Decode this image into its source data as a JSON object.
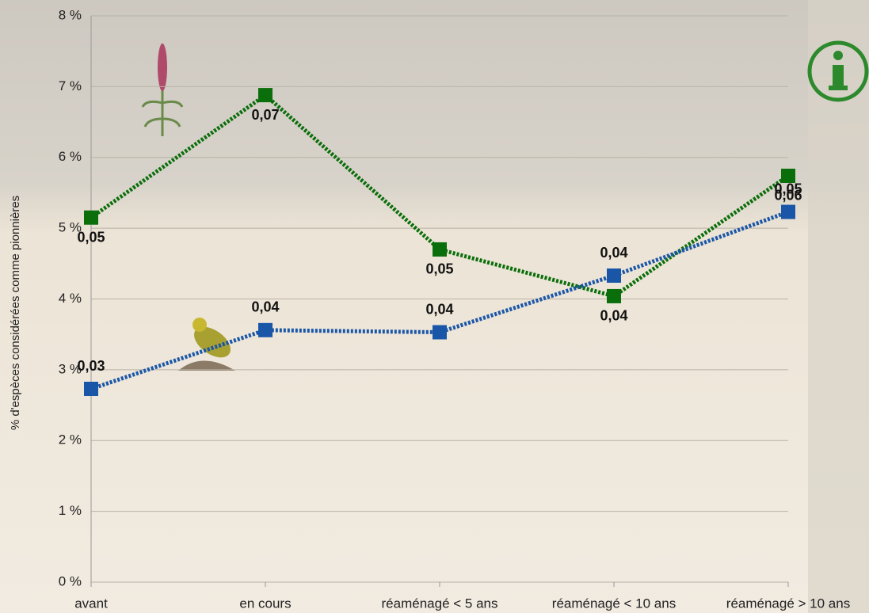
{
  "chart_data": {
    "type": "line",
    "y_label": "% d'espèces considérées comme pionnières",
    "categories": [
      "avant",
      "en cours",
      "réaménagé < 5 ans",
      "réaménagé < 10 ans",
      "réaménagé > 10 ans"
    ],
    "series": [
      {
        "color": "#0a6e0a",
        "values": [
          5.15,
          6.88,
          4.7,
          4.04,
          5.74
        ],
        "value_labels": [
          "0,05",
          "0,07",
          "0,05",
          "0,04",
          "0,06"
        ]
      },
      {
        "color": "#1a56a8",
        "values": [
          2.73,
          3.56,
          3.53,
          4.33,
          5.23
        ],
        "value_labels": [
          "0,03",
          "0,04",
          "0,04",
          "0,04",
          "0,05"
        ]
      }
    ],
    "ylim": [
      0,
      8
    ],
    "yticks": [
      {
        "value": 0,
        "label": "0 %"
      },
      {
        "value": 1,
        "label": "1 %"
      },
      {
        "value": 2,
        "label": "2 %"
      },
      {
        "value": 3,
        "label": "3 %"
      },
      {
        "value": 4,
        "label": "4 %"
      },
      {
        "value": 5,
        "label": "5 %"
      },
      {
        "value": 6,
        "label": "6 %"
      },
      {
        "value": 7,
        "label": "7 %"
      },
      {
        "value": 8,
        "label": "8 %"
      }
    ],
    "grid": true
  }
}
